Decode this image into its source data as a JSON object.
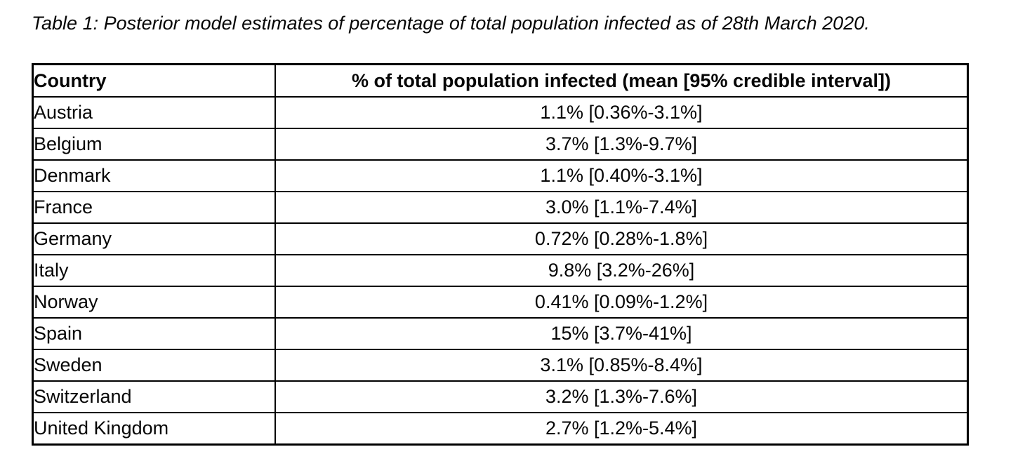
{
  "caption": "Table 1: Posterior model estimates of percentage of total population infected as of 28th March 2020.",
  "table": {
    "headers": [
      "Country",
      "% of total population infected (mean [95% credible interval])"
    ],
    "rows": [
      [
        "Austria",
        "1.1% [0.36%-3.1%]"
      ],
      [
        "Belgium",
        "3.7% [1.3%-9.7%]"
      ],
      [
        "Denmark",
        "1.1% [0.40%-3.1%]"
      ],
      [
        "France",
        "3.0% [1.1%-7.4%]"
      ],
      [
        "Germany",
        "0.72% [0.28%-1.8%]"
      ],
      [
        "Italy",
        "9.8% [3.2%-26%]"
      ],
      [
        "Norway",
        "0.41% [0.09%-1.2%]"
      ],
      [
        "Spain",
        "15% [3.7%-41%]"
      ],
      [
        "Sweden",
        "3.1% [0.85%-8.4%]"
      ],
      [
        "Switzerland",
        "3.2% [1.3%-7.6%]"
      ],
      [
        "United Kingdom",
        "2.7% [1.2%-5.4%]"
      ]
    ]
  },
  "colors": {
    "text": "#060606",
    "border": "#000000",
    "background": "#ffffff"
  }
}
